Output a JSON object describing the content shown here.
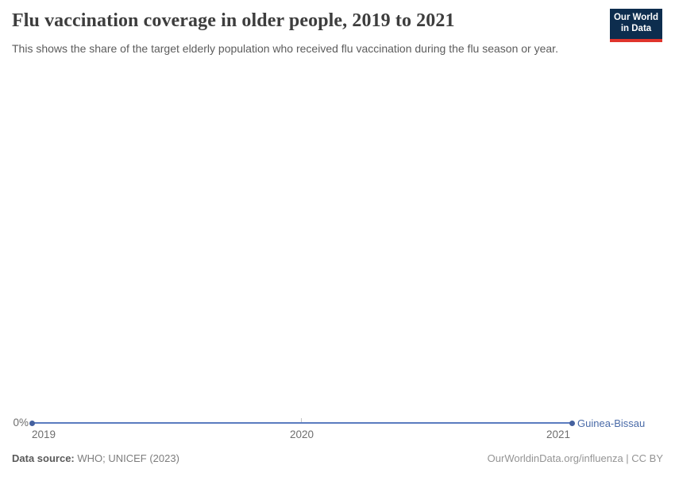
{
  "header": {
    "title": "Flu vaccination coverage in older people, 2019 to 2021",
    "subtitle": "This shows the share of the target elderly population who received flu vaccination during the flu season or year.",
    "logo": {
      "line1": "Our World",
      "line2": "in Data",
      "background_color": "#0d2d4e",
      "stripe_color": "#e0342c"
    }
  },
  "chart_data": {
    "type": "line",
    "title": "Flu vaccination coverage in older people, 2019 to 2021",
    "x": [
      2019,
      2020,
      2021
    ],
    "x_tick_labels": [
      "2019",
      "2020",
      "2021"
    ],
    "y_axis": {
      "tick_labels": [
        "0%"
      ]
    },
    "series": [
      {
        "name": "Guinea-Bissau",
        "values": [
          0,
          0,
          0
        ],
        "unit": "%",
        "color": "#5b7cc0"
      }
    ],
    "grid": false,
    "legend_position": "end-of-line label",
    "xlabel": "",
    "ylabel": ""
  },
  "footer": {
    "source_label": "Data source:",
    "source_value": " WHO; UNICEF (2023)",
    "rights": "OurWorldinData.org/influenza | CC BY"
  }
}
